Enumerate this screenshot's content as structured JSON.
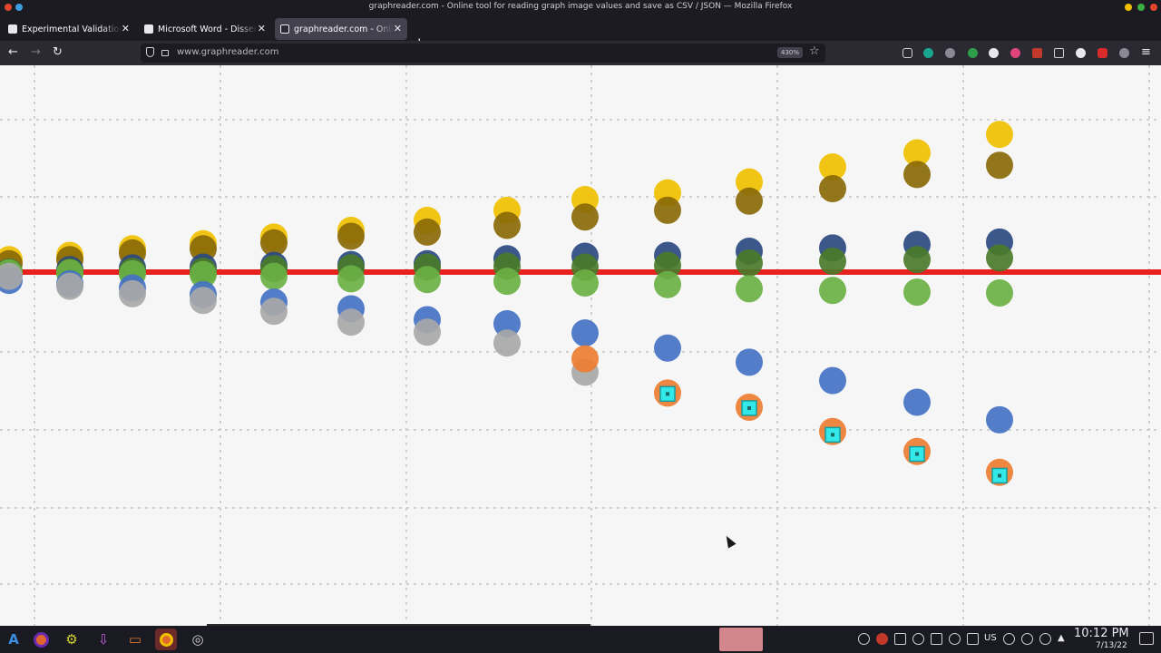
{
  "window": {
    "title": "graphreader.com - Online tool for reading graph image values and save as CSV / JSON — Mozilla Firefox"
  },
  "tabs": [
    {
      "label": "Experimental Validation of",
      "active": false
    },
    {
      "label": "Microsoft Word - Dissertat",
      "active": false
    },
    {
      "label": "graphreader.com - Online",
      "active": true
    }
  ],
  "navbar": {
    "url": "www.graphreader.com",
    "zoom": "430%"
  },
  "mode_indicator": "normal",
  "taskbar": {
    "keyboard_layout": "US",
    "time": "10:12 PM",
    "date": "7/13/22"
  },
  "colors": {
    "red_line": "#e8201e",
    "gold": "#f0c000",
    "olive": "#8a6a08",
    "navy": "#2b4a80",
    "dark_green": "#4a7a2a",
    "light_green": "#6ab044",
    "blue": "#4472c4",
    "gray": "#a8a8a8",
    "orange": "#ed7d31",
    "cyan_marker": "#33e8e8"
  },
  "chart_data": {
    "type": "scatter",
    "x": [
      0,
      1,
      2,
      3,
      4,
      5,
      6,
      7,
      8,
      9,
      10,
      11,
      12,
      13
    ],
    "reference_line": 0,
    "series": [
      {
        "color": "gold",
        "values": [
          0.15,
          0.2,
          0.28,
          0.34,
          0.42,
          0.5,
          0.62,
          0.74,
          0.87,
          0.95,
          1.08,
          1.26,
          1.43,
          1.65
        ]
      },
      {
        "color": "olive",
        "values": [
          0.1,
          0.15,
          0.23,
          0.28,
          0.35,
          0.43,
          0.48,
          0.56,
          0.66,
          0.74,
          0.85,
          1.0,
          1.17,
          1.28
        ]
      },
      {
        "color": "navy",
        "values": [
          0.0,
          0.03,
          0.05,
          0.06,
          0.08,
          0.09,
          0.1,
          0.16,
          0.19,
          0.2,
          0.25,
          0.29,
          0.33,
          0.36
        ]
      },
      {
        "color": "dark_green",
        "values": [
          0.0,
          0.0,
          0.01,
          0.01,
          0.04,
          0.05,
          0.06,
          0.07,
          0.06,
          0.08,
          0.11,
          0.13,
          0.15,
          0.17
        ]
      },
      {
        "color": "light_green",
        "values": [
          -0.01,
          -0.01,
          -0.02,
          -0.03,
          -0.05,
          -0.08,
          -0.09,
          -0.11,
          -0.13,
          -0.15,
          -0.2,
          -0.22,
          -0.24,
          -0.25
        ]
      },
      {
        "color": "blue",
        "values": [
          -0.1,
          -0.14,
          -0.19,
          -0.27,
          -0.36,
          -0.44,
          -0.57,
          -0.62,
          -0.73,
          -0.91,
          -1.08,
          -1.3,
          -1.56,
          -1.77
        ]
      },
      {
        "color": "gray",
        "values": [
          -0.05,
          -0.17,
          -0.26,
          -0.34,
          -0.47,
          -0.6,
          -0.72,
          -0.85,
          -1.2,
          null,
          null,
          null,
          null,
          null
        ]
      },
      {
        "color": "orange",
        "values": [
          null,
          null,
          null,
          null,
          null,
          null,
          null,
          null,
          -1.04,
          -1.45,
          -1.62,
          -1.91,
          -2.15,
          -2.4
        ]
      },
      {
        "color": "cyan_marker",
        "values": [
          null,
          null,
          null,
          null,
          null,
          null,
          null,
          null,
          null,
          -1.46,
          -1.63,
          -1.95,
          -2.18,
          -2.44
        ]
      }
    ]
  }
}
